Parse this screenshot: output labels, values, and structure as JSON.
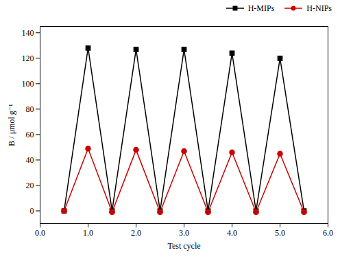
{
  "chart_data": {
    "type": "line",
    "xlabel": "Test cycle",
    "ylabel": "B / μmol g⁻¹",
    "x": [
      0.5,
      1,
      1.5,
      2,
      2.5,
      3,
      3.5,
      4,
      4.5,
      5,
      5.5
    ],
    "series": [
      {
        "name": "H-MIPs",
        "color": "#000000",
        "marker": "square",
        "values": [
          0,
          128,
          0,
          127,
          0,
          127,
          0,
          124,
          0,
          120,
          0
        ]
      },
      {
        "name": "H-NIPs",
        "color": "#cc0000",
        "marker": "circle",
        "values": [
          0,
          49,
          -1,
          48,
          -1,
          47,
          -1,
          46,
          -1,
          45,
          -1
        ]
      }
    ],
    "xlim": [
      0,
      6
    ],
    "ylim": [
      -10,
      145
    ],
    "xticks": [
      0,
      1,
      2,
      3,
      4,
      5,
      6
    ],
    "yticks": [
      0,
      20,
      40,
      60,
      80,
      100,
      120,
      140
    ],
    "legend": "upper right"
  }
}
